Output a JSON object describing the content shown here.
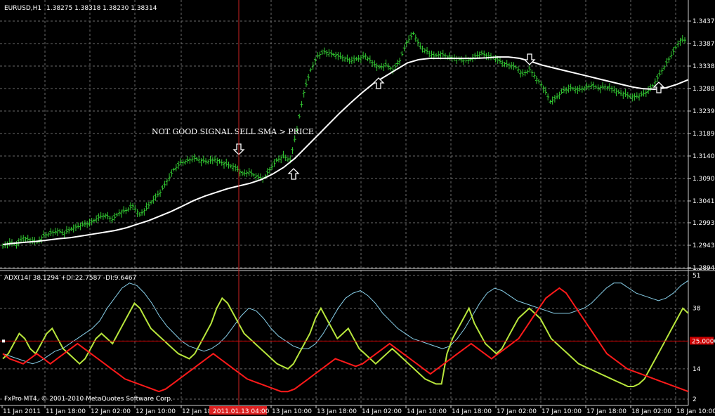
{
  "header": {
    "symbol": "EURUSD,H1",
    "ohlc": "1.38275 1.38318 1.38230 1.38314"
  },
  "watermark": "FxPro MT4, © 2001-2010 MetaQuotes Software Corp.",
  "annotation": "NOT GOOD SIGNAL SELL SMA > PRICE",
  "crosshair_time": "2011.01.13 04:00",
  "level_label": "25.0000",
  "colors": {
    "background": "#000000",
    "grid": "#6a6a6a",
    "candle": "#33cc33",
    "sma": "#ffffff",
    "adx": "#87cee8",
    "plus_di": "#b8e63c",
    "minus_di": "#ff1a1a",
    "crosshair": "#cc2222",
    "level": "#cc0000"
  },
  "chart_data": [
    {
      "type": "candlestick",
      "title": "EURUSD,H1",
      "y_ticks": [
        "1.34370",
        "1.33875",
        "1.33380",
        "1.32885",
        "1.32390",
        "1.31895",
        "1.31400",
        "1.30905",
        "1.30410",
        "1.29930",
        "1.29435",
        "1.28940"
      ],
      "ylim": [
        1.2894,
        1.3437
      ],
      "x_ticks": [
        "11 Jan 2011",
        "11 Jan 18:00",
        "12 Jan 02:00",
        "12 Jan 10:00",
        "12 Jan 18",
        "13 Jan 10:00",
        "13 Jan 18:00",
        "14 Jan 02:00",
        "14 Jan 10:00",
        "14 Jan 18:00",
        "17 Jan 02:00",
        "17 Jan 10:00",
        "17 Jan 18:00",
        "18 Jan 02:00",
        "18 Jan 10:00"
      ],
      "close_path": [
        1.294,
        1.295,
        1.2945,
        1.296,
        1.2955,
        1.295,
        1.2965,
        1.297,
        1.2975,
        1.297,
        1.298,
        1.2985,
        1.299,
        1.2995,
        1.3005,
        1.301,
        1.3,
        1.3015,
        1.302,
        1.303,
        1.301,
        1.3025,
        1.3045,
        1.306,
        1.3085,
        1.311,
        1.3125,
        1.313,
        1.3135,
        1.313,
        1.3128,
        1.3132,
        1.3125,
        1.312,
        1.3115,
        1.31,
        1.3105,
        1.3095,
        1.309,
        1.311,
        1.313,
        1.314,
        1.313,
        1.32,
        1.328,
        1.333,
        1.336,
        1.337,
        1.3365,
        1.336,
        1.3355,
        1.335,
        1.3355,
        1.336,
        1.3345,
        1.3335,
        1.334,
        1.333,
        1.335,
        1.339,
        1.341,
        1.338,
        1.337,
        1.336,
        1.3365,
        1.3358,
        1.3355,
        1.3352,
        1.335,
        1.336,
        1.3365,
        1.336,
        1.3355,
        1.3345,
        1.334,
        1.3335,
        1.332,
        1.333,
        1.331,
        1.329,
        1.326,
        1.327,
        1.3285,
        1.329,
        1.3285,
        1.329,
        1.3295,
        1.329,
        1.3292,
        1.3288,
        1.328,
        1.3275,
        1.327,
        1.3272,
        1.328,
        1.3295,
        1.332,
        1.3345,
        1.337,
        1.3395
      ],
      "sma": [
        1.2945,
        1.2948,
        1.295,
        1.2952,
        1.2955,
        1.2958,
        1.296,
        1.2964,
        1.2968,
        1.2972,
        1.2976,
        1.2982,
        1.299,
        1.2998,
        1.3008,
        1.3018,
        1.303,
        1.3042,
        1.3052,
        1.306,
        1.3068,
        1.3074,
        1.308,
        1.3088,
        1.31,
        1.3115,
        1.3135,
        1.316,
        1.3185,
        1.321,
        1.3235,
        1.3258,
        1.328,
        1.33,
        1.3315,
        1.333,
        1.3345,
        1.3352,
        1.3355,
        1.3355,
        1.3355,
        1.3355,
        1.3355,
        1.3356,
        1.3358,
        1.3358,
        1.3355,
        1.3348,
        1.334,
        1.3334,
        1.3328,
        1.3322,
        1.3316,
        1.331,
        1.3304,
        1.3298,
        1.3292,
        1.3288,
        1.3287,
        1.329,
        1.3298,
        1.3308
      ],
      "arrows": [
        {
          "dir": "down",
          "label": "sell"
        },
        {
          "dir": "up",
          "label": "buy"
        },
        {
          "dir": "up",
          "label": "buy"
        },
        {
          "dir": "down",
          "label": "sell"
        },
        {
          "dir": "up",
          "label": "buy"
        }
      ],
      "grid": true
    },
    {
      "type": "line",
      "title": "ADX(14) 38.1294 +DI:22.7587 -DI:9.6467",
      "y_ticks": [
        "51",
        "38",
        "25",
        "14",
        "2"
      ],
      "level": 25,
      "series": [
        {
          "name": "ADX(14)",
          "values": [
            20,
            19,
            18,
            17,
            16,
            17,
            19,
            21,
            22,
            24,
            26,
            28,
            30,
            33,
            38,
            42,
            46,
            48,
            47,
            44,
            40,
            35,
            31,
            28,
            25,
            23,
            22,
            21,
            22,
            24,
            27,
            31,
            35,
            38,
            37,
            34,
            30,
            27,
            25,
            23,
            22,
            22,
            24,
            28,
            33,
            38,
            42,
            44,
            45,
            43,
            40,
            36,
            33,
            30,
            28,
            26,
            25,
            24,
            23,
            22,
            23,
            26,
            30,
            35,
            40,
            44,
            46,
            45,
            43,
            41,
            40,
            39,
            38,
            37,
            36,
            36,
            36,
            37,
            38,
            40,
            43,
            46,
            48,
            48,
            46,
            44,
            43,
            42,
            41,
            42,
            44,
            47,
            49
          ]
        },
        {
          "name": "+DI",
          "values": [
            18,
            20,
            24,
            28,
            26,
            22,
            20,
            24,
            28,
            30,
            26,
            22,
            20,
            18,
            16,
            18,
            22,
            26,
            28,
            26,
            24,
            28,
            32,
            36,
            40,
            38,
            34,
            30,
            28,
            26,
            24,
            22,
            20,
            19,
            18,
            20,
            24,
            28,
            32,
            38,
            42,
            40,
            36,
            32,
            28,
            26,
            24,
            22,
            20,
            18,
            16,
            15,
            14,
            16,
            20,
            24,
            28,
            34,
            38,
            34,
            30,
            26,
            28,
            30,
            26,
            22,
            20,
            18,
            16,
            18,
            20,
            22,
            20,
            18,
            16,
            14,
            12,
            10,
            9,
            8,
            8,
            20,
            26,
            30,
            34,
            38,
            32,
            28,
            24,
            22,
            20,
            22,
            26,
            30,
            34,
            36,
            38,
            36,
            34,
            30,
            26,
            24,
            22,
            20,
            18,
            16,
            15,
            14,
            13,
            12,
            11,
            10,
            9,
            8,
            7,
            7,
            8,
            10,
            14,
            18,
            22,
            26,
            30,
            34,
            38,
            36
          ]
        },
        {
          "name": "-DI",
          "values": [
            20,
            18,
            17,
            16,
            18,
            20,
            18,
            16,
            18,
            20,
            22,
            24,
            22,
            20,
            18,
            16,
            14,
            12,
            10,
            9,
            8,
            7,
            6,
            5,
            6,
            8,
            10,
            12,
            14,
            16,
            18,
            20,
            18,
            16,
            14,
            12,
            10,
            9,
            8,
            7,
            6,
            5,
            5,
            6,
            8,
            10,
            12,
            14,
            16,
            18,
            17,
            16,
            15,
            16,
            18,
            20,
            22,
            24,
            22,
            20,
            18,
            16,
            14,
            12,
            14,
            16,
            18,
            20,
            22,
            24,
            22,
            20,
            18,
            20,
            22,
            24,
            26,
            30,
            34,
            38,
            42,
            44,
            46,
            44,
            40,
            36,
            32,
            28,
            24,
            20,
            18,
            16,
            14,
            13,
            12,
            11,
            10,
            9,
            8,
            7,
            6,
            5
          ]
        }
      ]
    }
  ]
}
